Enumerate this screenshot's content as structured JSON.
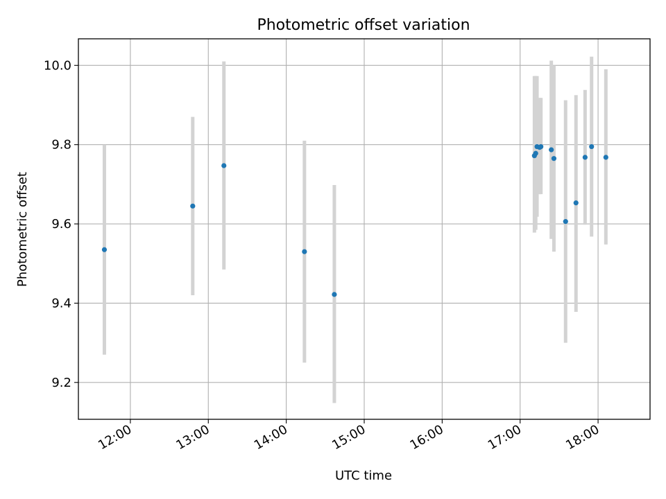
{
  "chart_data": {
    "type": "scatter",
    "title": "Photometric offset variation",
    "xlabel": "UTC time",
    "ylabel": "Photometric offset",
    "x_axis": "time",
    "xlim": [
      "11:20",
      "18:40"
    ],
    "ylim": [
      9.107,
      10.067
    ],
    "grid": true,
    "xticks": [
      "12:00",
      "13:00",
      "14:00",
      "15:00",
      "16:00",
      "17:00",
      "18:00"
    ],
    "yticks": [
      9.2,
      9.4,
      9.6,
      9.8,
      10.0
    ],
    "ytick_labels": [
      "9.2",
      "9.4",
      "9.6",
      "9.8",
      "10.0"
    ],
    "colors": {
      "point": "#1f77b4",
      "errorbar": "#d3d3d3",
      "grid": "#b0b0b0"
    },
    "series": [
      {
        "points": [
          {
            "x": "11:40",
            "y": 9.535,
            "err_low": 9.27,
            "err_high": 9.8
          },
          {
            "x": "12:48",
            "y": 9.645,
            "err_low": 9.42,
            "err_high": 9.87
          },
          {
            "x": "13:12",
            "y": 9.747,
            "err_low": 9.485,
            "err_high": 10.01
          },
          {
            "x": "14:14",
            "y": 9.53,
            "err_low": 9.25,
            "err_high": 9.81
          },
          {
            "x": "14:37",
            "y": 9.422,
            "err_low": 9.148,
            "err_high": 9.698
          },
          {
            "x": "17:11",
            "y": 9.772,
            "err_low": 9.578,
            "err_high": 9.973
          },
          {
            "x": "17:12",
            "y": 9.778,
            "err_low": 9.585,
            "err_high": 9.973
          },
          {
            "x": "17:13",
            "y": 9.795,
            "err_low": 9.618,
            "err_high": 9.973
          },
          {
            "x": "17:15",
            "y": 9.793,
            "err_low": 9.675,
            "err_high": 9.918
          },
          {
            "x": "17:16",
            "y": 9.795,
            "err_low": 9.675,
            "err_high": 9.918
          },
          {
            "x": "17:24",
            "y": 9.787,
            "err_low": 9.562,
            "err_high": 10.012
          },
          {
            "x": "17:26",
            "y": 9.765,
            "err_low": 9.53,
            "err_high": 10.0
          },
          {
            "x": "17:35",
            "y": 9.606,
            "err_low": 9.3,
            "err_high": 9.912
          },
          {
            "x": "17:43",
            "y": 9.653,
            "err_low": 9.378,
            "err_high": 9.925
          },
          {
            "x": "17:50",
            "y": 9.768,
            "err_low": 9.598,
            "err_high": 9.938
          },
          {
            "x": "17:55",
            "y": 9.795,
            "err_low": 9.568,
            "err_high": 10.022
          },
          {
            "x": "18:06",
            "y": 9.768,
            "err_low": 9.548,
            "err_high": 9.99
          }
        ]
      }
    ]
  }
}
